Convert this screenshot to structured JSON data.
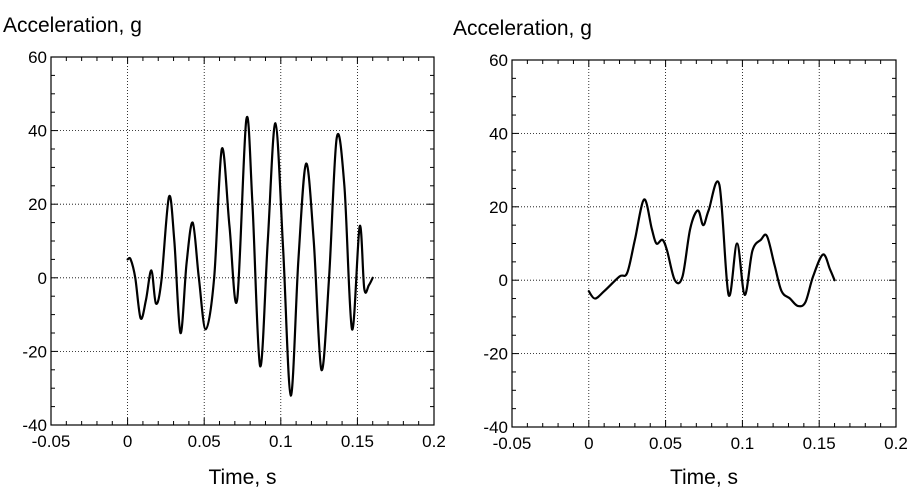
{
  "chart_data": [
    {
      "type": "line",
      "ylabel": "Acceleration, g",
      "xlabel": "Time, s",
      "xlim": [
        -0.05,
        0.2
      ],
      "ylim": [
        -40,
        60
      ],
      "x_ticks": [
        "-0.05",
        "0",
        "0.05",
        "0.1",
        "0.15",
        "0.2"
      ],
      "y_ticks": [
        "60",
        "40",
        "20",
        "0",
        "-20",
        "-40"
      ],
      "grid": true,
      "series": [
        {
          "x": [
            0,
            0.002,
            0.005,
            0.0085,
            0.012,
            0.0155,
            0.0185,
            0.022,
            0.027,
            0.0305,
            0.0345,
            0.0385,
            0.0425,
            0.0465,
            0.051,
            0.0565,
            0.0615,
            0.0665,
            0.0715,
            0.0775,
            0.0815,
            0.0865,
            0.0915,
            0.0965,
            0.1015,
            0.1065,
            0.1115,
            0.1165,
            0.1215,
            0.1265,
            0.1315,
            0.1365,
            0.1415,
            0.1465,
            0.1515,
            0.1545,
            0.1575,
            0.16
          ],
          "y": [
            5,
            5,
            0,
            -11,
            -6,
            2,
            -7,
            -1,
            22,
            10,
            -15,
            4,
            15,
            0,
            -14,
            0,
            35,
            14,
            -6,
            43,
            20,
            -24,
            10,
            42,
            8,
            -32,
            5,
            31,
            10,
            -25,
            0,
            38,
            25,
            -14,
            14,
            -3,
            -2,
            0
          ]
        }
      ]
    },
    {
      "type": "line",
      "ylabel": "Acceleration, g",
      "xlabel": "Time, s",
      "xlim": [
        -0.05,
        0.2
      ],
      "ylim": [
        -40,
        60
      ],
      "x_ticks": [
        "-0.05",
        "0",
        "0.05",
        "0.1",
        "0.15",
        "0.2"
      ],
      "y_ticks": [
        "60",
        "40",
        "20",
        "0",
        "-20",
        "-40"
      ],
      "grid": true,
      "series": [
        {
          "x": [
            0,
            0.004,
            0.01,
            0.02,
            0.025,
            0.03,
            0.036,
            0.041,
            0.044,
            0.048,
            0.051,
            0.056,
            0.061,
            0.066,
            0.071,
            0.0745,
            0.078,
            0.085,
            0.091,
            0.0965,
            0.1015,
            0.1065,
            0.112,
            0.116,
            0.121,
            0.1255,
            0.131,
            0.136,
            0.141,
            0.146,
            0.1525,
            0.157,
            0.16
          ],
          "y": [
            -3,
            -5,
            -3,
            1,
            2,
            11,
            22,
            14,
            10,
            11,
            8,
            0,
            1,
            14,
            19,
            15,
            19,
            26,
            -4,
            10,
            -4,
            8,
            11,
            12,
            4,
            -3,
            -5,
            -7,
            -6,
            1,
            7,
            3,
            0
          ]
        }
      ]
    }
  ]
}
